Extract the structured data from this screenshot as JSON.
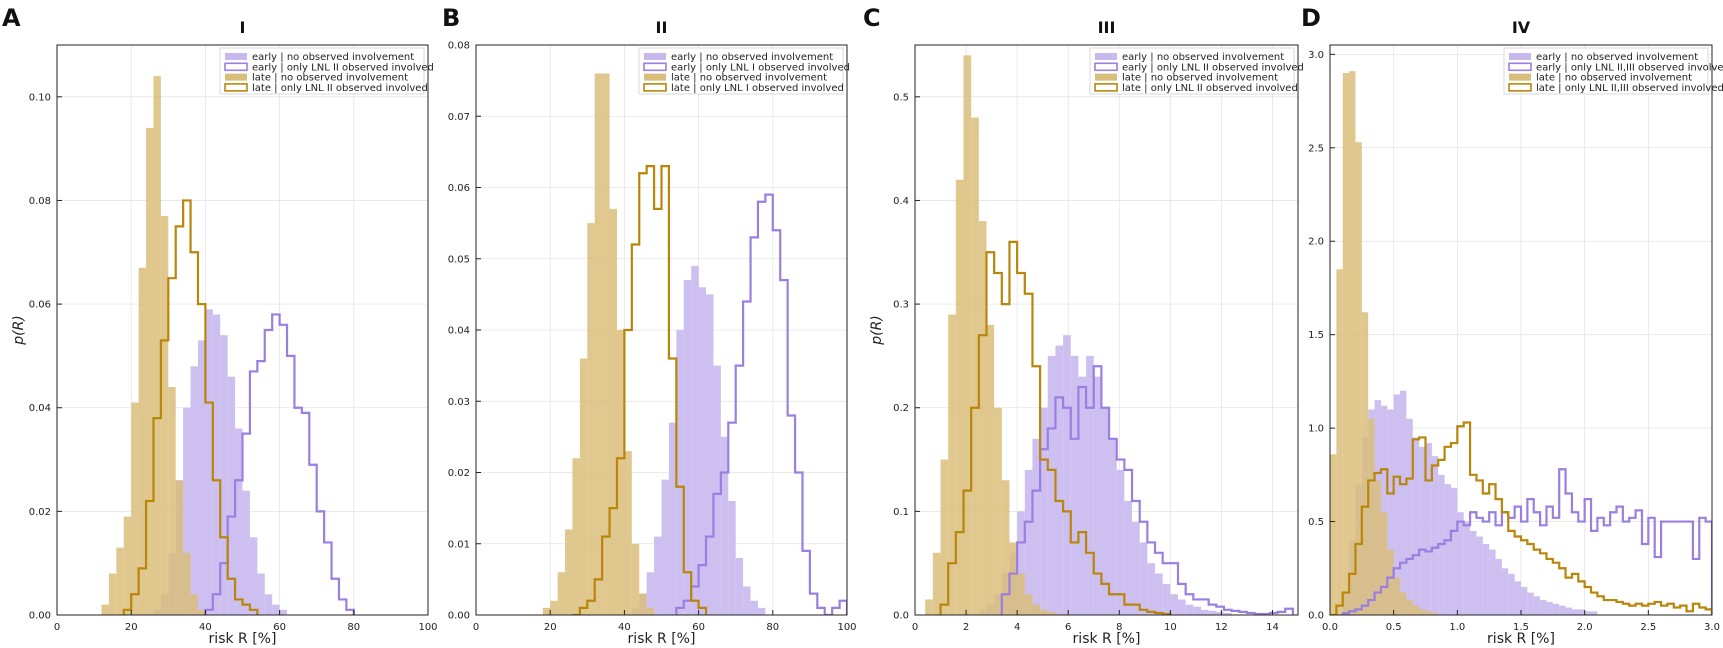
{
  "colors": {
    "early": "#9b7fe0",
    "early_fill": "#c8b8ee",
    "late": "#b8860b",
    "late_fill": "#d9bd7a"
  },
  "chart_data": [
    {
      "letter": "A",
      "type": "histogram",
      "title": "I",
      "xlabel": "risk R [%]",
      "ylabel": "p(R)",
      "xlim": [
        0,
        100
      ],
      "ylim": [
        0,
        0.11
      ],
      "xticks": [
        0,
        20,
        40,
        60,
        80,
        100
      ],
      "yticks": [
        0.0,
        0.02,
        0.04,
        0.06,
        0.08,
        0.1
      ],
      "xtick_labels": [
        "0",
        "20",
        "40",
        "60",
        "80",
        "100"
      ],
      "ytick_labels": [
        "0.00",
        "0.02",
        "0.04",
        "0.06",
        "0.08",
        "0.10"
      ],
      "legend": [
        "early | no observed involvement",
        "early | only LNL II observed involved",
        "late | no observed involvement",
        "late | only LNL II observed involved"
      ],
      "series": [
        {
          "name": "early | no observed involvement",
          "style": "filled",
          "group": "early",
          "x_start": 26,
          "bin_width": 2,
          "values": [
            0.001,
            0.004,
            0.012,
            0.026,
            0.04,
            0.048,
            0.053,
            0.059,
            0.058,
            0.054,
            0.046,
            0.036,
            0.024,
            0.015,
            0.008,
            0.004,
            0.002,
            0.001
          ]
        },
        {
          "name": "early | only LNL II observed involved",
          "style": "step",
          "group": "early",
          "x_start": 40,
          "bin_width": 2,
          "values": [
            0.001,
            0.004,
            0.01,
            0.019,
            0.026,
            0.035,
            0.047,
            0.049,
            0.055,
            0.058,
            0.056,
            0.05,
            0.04,
            0.039,
            0.029,
            0.02,
            0.014,
            0.007,
            0.003,
            0.001
          ]
        },
        {
          "name": "late | no observed involvement",
          "style": "filled",
          "group": "late",
          "x_start": 12,
          "bin_width": 2,
          "values": [
            0.002,
            0.008,
            0.013,
            0.019,
            0.041,
            0.067,
            0.094,
            0.104,
            0.077,
            0.044,
            0.026,
            0.012,
            0.004,
            0.001
          ]
        },
        {
          "name": "late | only LNL II observed involved",
          "style": "step",
          "group": "late",
          "x_start": 18,
          "bin_width": 2,
          "values": [
            0.001,
            0.004,
            0.009,
            0.022,
            0.038,
            0.053,
            0.065,
            0.075,
            0.08,
            0.07,
            0.06,
            0.041,
            0.026,
            0.015,
            0.007,
            0.003,
            0.002,
            0.001
          ]
        }
      ]
    },
    {
      "letter": "B",
      "type": "histogram",
      "title": "II",
      "xlabel": "risk R [%]",
      "ylabel": "",
      "xlim": [
        0,
        100
      ],
      "ylim": [
        0,
        0.08
      ],
      "xticks": [
        0,
        20,
        40,
        60,
        80,
        100
      ],
      "yticks": [
        0.0,
        0.01,
        0.02,
        0.03,
        0.04,
        0.05,
        0.06,
        0.07,
        0.08
      ],
      "xtick_labels": [
        "0",
        "20",
        "40",
        "60",
        "80",
        "100"
      ],
      "ytick_labels": [
        "0.00",
        "0.01",
        "0.02",
        "0.03",
        "0.04",
        "0.05",
        "0.06",
        "0.07",
        "0.08"
      ],
      "legend": [
        "early | no observed involvement",
        "early | only LNL I observed involved",
        "late | no observed involvement",
        "late | only LNL I observed involved"
      ],
      "series": [
        {
          "name": "early | no observed involvement",
          "style": "filled",
          "group": "early",
          "x_start": 42,
          "bin_width": 2,
          "values": [
            0.001,
            0.003,
            0.006,
            0.011,
            0.019,
            0.027,
            0.04,
            0.047,
            0.049,
            0.046,
            0.045,
            0.035,
            0.025,
            0.016,
            0.008,
            0.004,
            0.002,
            0.001
          ]
        },
        {
          "name": "early | only LNL I observed involved",
          "style": "step",
          "group": "early",
          "x_start": 54,
          "bin_width": 2,
          "values": [
            0.001,
            0.002,
            0.004,
            0.007,
            0.011,
            0.017,
            0.02,
            0.027,
            0.035,
            0.044,
            0.053,
            0.058,
            0.059,
            0.054,
            0.047,
            0.028,
            0.02,
            0.009,
            0.003,
            0.001,
            0.0,
            0.001,
            0.002
          ]
        },
        {
          "name": "late | no observed involvement",
          "style": "filled",
          "group": "late",
          "x_start": 18,
          "bin_width": 2,
          "values": [
            0.001,
            0.002,
            0.006,
            0.012,
            0.022,
            0.036,
            0.055,
            0.076,
            0.076,
            0.057,
            0.04,
            0.023,
            0.01,
            0.003,
            0.001
          ]
        },
        {
          "name": "late | only LNL I observed involved",
          "style": "step",
          "group": "late",
          "x_start": 26,
          "bin_width": 2,
          "values": [
            0.0,
            0.001,
            0.002,
            0.005,
            0.011,
            0.015,
            0.022,
            0.04,
            0.052,
            0.062,
            0.063,
            0.057,
            0.063,
            0.036,
            0.018,
            0.006,
            0.002,
            0.001
          ]
        }
      ]
    },
    {
      "letter": "C",
      "type": "histogram",
      "title": "III",
      "xlabel": "risk R [%]",
      "ylabel": "p(R)",
      "xlim": [
        0,
        15
      ],
      "ylim": [
        0,
        0.55
      ],
      "xticks": [
        0,
        2,
        4,
        6,
        8,
        10,
        12,
        14
      ],
      "yticks": [
        0.0,
        0.1,
        0.2,
        0.3,
        0.4,
        0.5
      ],
      "xtick_labels": [
        "0",
        "2",
        "4",
        "6",
        "8",
        "10",
        "12",
        "14"
      ],
      "ytick_labels": [
        "0.0",
        "0.1",
        "0.2",
        "0.3",
        "0.4",
        "0.5"
      ],
      "legend": [
        "early | no observed involvement",
        "early | only LNL II observed involved",
        "late | no observed involvement",
        "late | only LNL II observed involved"
      ],
      "series": [
        {
          "name": "early | no observed involvement",
          "style": "filled",
          "group": "early",
          "x_start": 2.5,
          "bin_width": 0.3,
          "values": [
            0.005,
            0.01,
            0.02,
            0.04,
            0.06,
            0.1,
            0.14,
            0.17,
            0.2,
            0.25,
            0.26,
            0.27,
            0.25,
            0.23,
            0.25,
            0.23,
            0.2,
            0.17,
            0.14,
            0.11,
            0.09,
            0.07,
            0.05,
            0.04,
            0.03,
            0.02,
            0.015,
            0.01,
            0.008,
            0.005,
            0.004,
            0.003,
            0.002
          ]
        },
        {
          "name": "early | only LNL II observed involved",
          "style": "step",
          "group": "early",
          "x_start": 3.4,
          "bin_width": 0.3,
          "values": [
            0.02,
            0.04,
            0.07,
            0.09,
            0.12,
            0.16,
            0.18,
            0.21,
            0.2,
            0.17,
            0.22,
            0.2,
            0.24,
            0.2,
            0.17,
            0.15,
            0.14,
            0.11,
            0.09,
            0.07,
            0.06,
            0.05,
            0.05,
            0.03,
            0.02,
            0.015,
            0.015,
            0.01,
            0.008,
            0.005,
            0.004,
            0.003,
            0.002,
            0.001,
            0.001,
            0.002,
            0.003,
            0.006
          ]
        },
        {
          "name": "late | no observed involvement",
          "style": "filled",
          "group": "late",
          "x_start": 0.4,
          "bin_width": 0.3,
          "values": [
            0.015,
            0.06,
            0.15,
            0.29,
            0.42,
            0.54,
            0.48,
            0.38,
            0.28,
            0.2,
            0.13,
            0.07,
            0.04,
            0.02,
            0.01,
            0.005,
            0.003,
            0.001
          ]
        },
        {
          "name": "late | only LNL II observed involved",
          "style": "step",
          "group": "late",
          "x_start": 1.0,
          "bin_width": 0.3,
          "values": [
            0.01,
            0.05,
            0.08,
            0.12,
            0.2,
            0.27,
            0.35,
            0.33,
            0.3,
            0.36,
            0.33,
            0.31,
            0.24,
            0.15,
            0.14,
            0.11,
            0.1,
            0.07,
            0.08,
            0.06,
            0.04,
            0.03,
            0.02,
            0.02,
            0.01,
            0.01,
            0.005,
            0.003,
            0.002,
            0.001
          ]
        }
      ]
    },
    {
      "letter": "D",
      "type": "histogram",
      "title": "IV",
      "xlabel": "risk R [%]",
      "ylabel": "",
      "xlim": [
        0,
        3.0
      ],
      "ylim": [
        0,
        3.05
      ],
      "xticks": [
        0,
        0.5,
        1.0,
        1.5,
        2.0,
        2.5,
        3.0
      ],
      "yticks": [
        0.0,
        0.5,
        1.0,
        1.5,
        2.0,
        2.5,
        3.0
      ],
      "xtick_labels": [
        "0.0",
        "0.5",
        "1.0",
        "1.5",
        "2.0",
        "2.5",
        "3.0"
      ],
      "ytick_labels": [
        "0.0",
        "0.5",
        "1.0",
        "1.5",
        "2.0",
        "2.5",
        "3.0"
      ],
      "legend": [
        "early | no observed involvement",
        "early | only LNL II,III observed involved",
        "late | no observed involvement",
        "late | only LNL II,III observed involved"
      ],
      "series": [
        {
          "name": "early | no observed involvement",
          "style": "filled",
          "group": "early",
          "x_start": 0.1,
          "bin_width": 0.05,
          "values": [
            0.12,
            0.4,
            0.7,
            0.95,
            1.1,
            1.15,
            1.12,
            1.1,
            1.18,
            1.2,
            1.05,
            0.95,
            0.9,
            0.92,
            0.85,
            0.75,
            0.7,
            0.68,
            0.55,
            0.5,
            0.45,
            0.42,
            0.38,
            0.35,
            0.3,
            0.25,
            0.22,
            0.18,
            0.15,
            0.12,
            0.1,
            0.08,
            0.07,
            0.06,
            0.05,
            0.04,
            0.03,
            0.03,
            0.02,
            0.02
          ]
        },
        {
          "name": "early | only LNL II,III observed involved",
          "style": "step",
          "group": "early",
          "x_start": 0.1,
          "bin_width": 0.05,
          "values": [
            0.01,
            0.02,
            0.03,
            0.05,
            0.08,
            0.12,
            0.15,
            0.2,
            0.25,
            0.28,
            0.3,
            0.32,
            0.35,
            0.34,
            0.36,
            0.38,
            0.4,
            0.45,
            0.5,
            0.48,
            0.55,
            0.52,
            0.5,
            0.55,
            0.48,
            0.55,
            0.52,
            0.58,
            0.5,
            0.62,
            0.55,
            0.48,
            0.58,
            0.52,
            0.78,
            0.65,
            0.55,
            0.5,
            0.62,
            0.45,
            0.52,
            0.48,
            0.55,
            0.58,
            0.5,
            0.52,
            0.56,
            0.38,
            0.52,
            0.31,
            0.5,
            0.5,
            0.5,
            0.5,
            0.5,
            0.3,
            0.52,
            0.5
          ]
        },
        {
          "name": "late | no observed involvement",
          "style": "filled",
          "group": "late",
          "x_start": 0.0,
          "bin_width": 0.05,
          "values": [
            0.86,
            1.85,
            2.9,
            2.91,
            2.53,
            1.62,
            1.05,
            0.72,
            0.55,
            0.35,
            0.2,
            0.12,
            0.08,
            0.05,
            0.03,
            0.02,
            0.01
          ]
        },
        {
          "name": "late | only LNL II,III observed involved",
          "style": "step",
          "group": "late",
          "x_start": 0.0,
          "bin_width": 0.05,
          "values": [
            0.0,
            0.05,
            0.12,
            0.22,
            0.38,
            0.58,
            0.72,
            0.76,
            0.78,
            0.65,
            0.74,
            0.7,
            0.73,
            0.94,
            0.95,
            0.72,
            0.8,
            0.83,
            0.9,
            0.92,
            1.01,
            1.03,
            0.75,
            0.72,
            0.65,
            0.7,
            0.62,
            0.55,
            0.45,
            0.42,
            0.4,
            0.38,
            0.35,
            0.33,
            0.3,
            0.28,
            0.25,
            0.2,
            0.22,
            0.18,
            0.15,
            0.12,
            0.1,
            0.08,
            0.08,
            0.07,
            0.06,
            0.05,
            0.06,
            0.05,
            0.06,
            0.07,
            0.05,
            0.06,
            0.04,
            0.05,
            0.02,
            0.06,
            0.04,
            0.03
          ]
        }
      ]
    }
  ]
}
